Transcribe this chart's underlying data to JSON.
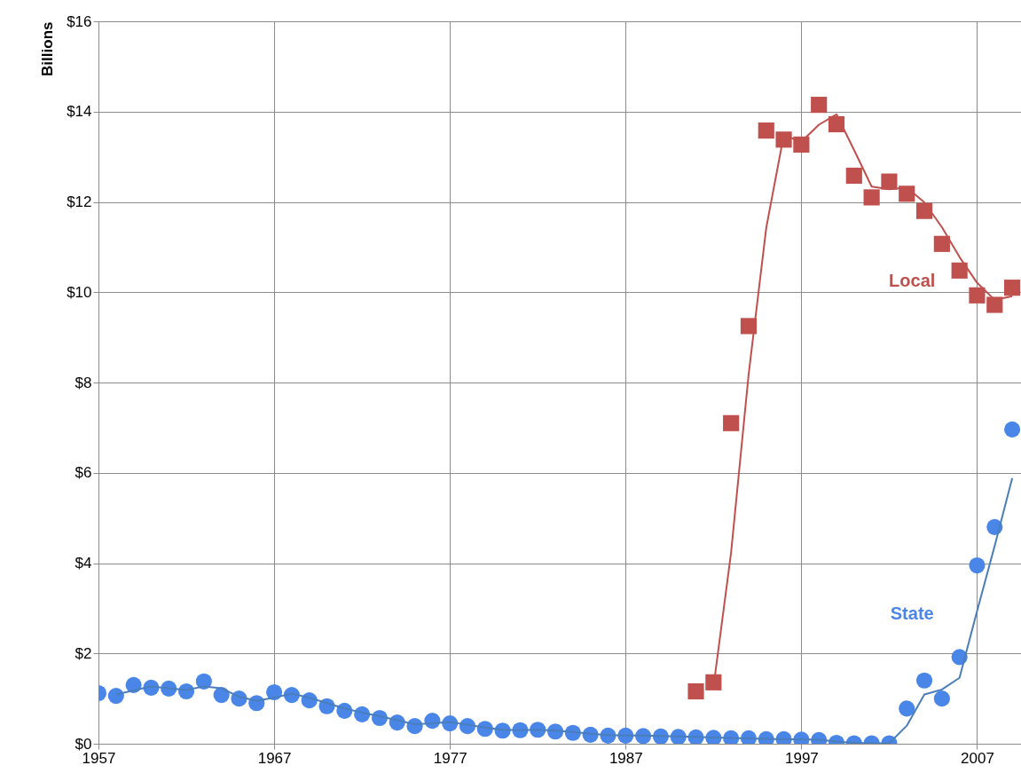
{
  "chart_data": {
    "type": "scatter",
    "ylabel": "Billions",
    "x": [
      1957,
      1958,
      1959,
      1960,
      1961,
      1962,
      1963,
      1964,
      1965,
      1966,
      1967,
      1968,
      1969,
      1970,
      1971,
      1972,
      1973,
      1974,
      1975,
      1976,
      1977,
      1978,
      1979,
      1980,
      1981,
      1982,
      1983,
      1984,
      1985,
      1986,
      1987,
      1988,
      1989,
      1990,
      1991,
      1992,
      1993,
      1994,
      1995,
      1996,
      1997,
      1998,
      1999,
      2000,
      2001,
      2002,
      2003,
      2004,
      2005,
      2006,
      2007,
      2008,
      2009
    ],
    "series": [
      {
        "name": "State",
        "marker": "circle",
        "color": "#4a86e8",
        "values": [
          1.12,
          1.06,
          1.3,
          1.24,
          1.22,
          1.16,
          1.38,
          1.08,
          1.0,
          0.9,
          1.14,
          1.08,
          0.96,
          0.83,
          0.73,
          0.65,
          0.57,
          0.47,
          0.39,
          0.51,
          0.45,
          0.39,
          0.33,
          0.29,
          0.3,
          0.31,
          0.27,
          0.24,
          0.2,
          0.18,
          0.18,
          0.17,
          0.16,
          0.15,
          0.14,
          0.13,
          0.12,
          0.12,
          0.1,
          0.1,
          0.09,
          0.08,
          0.02,
          0.01,
          0.01,
          0.01,
          0.78,
          1.4,
          1.0,
          1.92,
          3.95,
          4.8,
          6.96
        ]
      },
      {
        "name": "Local",
        "marker": "square",
        "color": "#c0504d",
        "x": [
          1991,
          1992,
          1993,
          1994,
          1995,
          1996,
          1997,
          1998,
          1999,
          2000,
          2001,
          2002,
          2003,
          2004,
          2005,
          2006,
          2007,
          2008,
          2009
        ],
        "values": [
          1.16,
          1.36,
          7.1,
          9.25,
          13.58,
          13.38,
          13.27,
          14.15,
          13.72,
          12.58,
          12.1,
          12.45,
          12.18,
          11.8,
          11.07,
          10.48,
          9.93,
          9.72,
          10.1
        ]
      },
      {
        "type": "line",
        "marker": "none",
        "color": "#4a7ebb",
        "x": [
          1958,
          1959,
          1960,
          1961,
          1962,
          1963,
          1964,
          1965,
          1966,
          1967,
          1968,
          1969,
          1970,
          1971,
          1972,
          1973,
          1974,
          1975,
          1976,
          1977,
          1978,
          1979,
          1980,
          1981,
          1982,
          1983,
          1984,
          1985,
          1986,
          1987,
          1988,
          1989,
          1990,
          1991,
          1992,
          1993,
          1994,
          1995,
          1996,
          1997,
          1998,
          1999,
          2000,
          2001,
          2002,
          2003,
          2004,
          2005,
          2006,
          2007,
          2008,
          2009
        ],
        "values": [
          1.09,
          1.18,
          1.27,
          1.23,
          1.19,
          1.27,
          1.23,
          1.04,
          0.95,
          1.02,
          1.11,
          1.02,
          0.9,
          0.78,
          0.69,
          0.61,
          0.52,
          0.43,
          0.45,
          0.48,
          0.42,
          0.36,
          0.31,
          0.3,
          0.31,
          0.29,
          0.26,
          0.22,
          0.19,
          0.18,
          0.18,
          0.17,
          0.16,
          0.15,
          0.14,
          0.13,
          0.12,
          0.11,
          0.1,
          0.1,
          0.09,
          0.05,
          0.02,
          0.01,
          0.01,
          0.4,
          1.09,
          1.2,
          1.46,
          2.94,
          4.38,
          5.88
        ]
      },
      {
        "type": "line",
        "marker": "none",
        "color": "#c0504d",
        "x": [
          1992,
          1993,
          1994,
          1995,
          1996,
          1997,
          1998,
          1999,
          2000,
          2001,
          2002,
          2003,
          2004,
          2005,
          2006,
          2007,
          2008,
          2009
        ],
        "values": [
          1.26,
          4.23,
          8.18,
          11.42,
          13.48,
          13.33,
          13.71,
          13.94,
          13.15,
          12.34,
          12.28,
          12.32,
          11.99,
          11.44,
          10.78,
          10.21,
          9.83,
          9.91
        ]
      }
    ],
    "xlim": [
      1957,
      2009.5
    ],
    "xticks": [
      1957,
      1967,
      1977,
      1987,
      1997,
      2007
    ],
    "ylim": [
      0,
      16
    ],
    "yticks": [
      {
        "value": 0,
        "label": "$0"
      },
      {
        "value": 2,
        "label": "$2"
      },
      {
        "value": 4,
        "label": "$4"
      },
      {
        "value": 6,
        "label": "$6"
      },
      {
        "value": 8,
        "label": "$8"
      },
      {
        "value": 10,
        "label": "$10"
      },
      {
        "value": 12,
        "label": "$12"
      },
      {
        "value": 14,
        "label": "$14"
      },
      {
        "value": 16,
        "label": "$16"
      }
    ],
    "grid": true
  }
}
